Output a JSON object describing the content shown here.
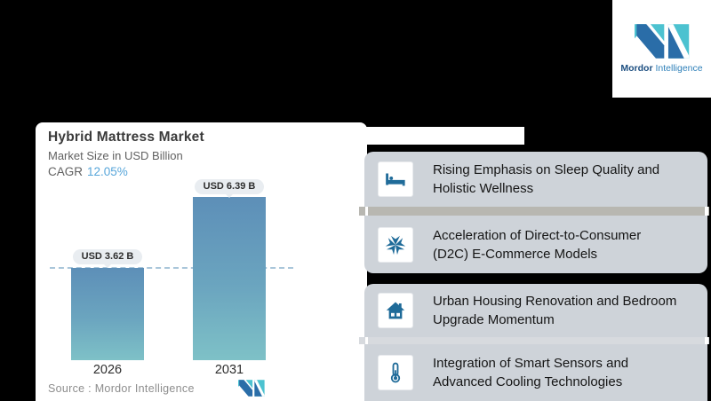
{
  "logo": {
    "brand_bold": "Mordor",
    "brand_regular": "Intelligence"
  },
  "chart": {
    "title": "Hybrid Mattress Market",
    "subtitle": "Market Size in USD Billion",
    "cagr_label": "CAGR",
    "cagr_value": "12.05%",
    "source": "Source :  Mordor Intelligence"
  },
  "chart_data": {
    "type": "bar",
    "title": "Hybrid Mattress Market",
    "subtitle": "Market Size in USD Billion",
    "cagr": "12.05%",
    "categories": [
      "2026",
      "2031"
    ],
    "values": [
      3.62,
      6.39
    ],
    "unit": "USD Billion",
    "bar_labels": [
      "USD 3.62 B",
      "USD 6.39 B"
    ],
    "reference_line_value": 3.62,
    "bar_gradient_top": "#5d8fb8",
    "bar_gradient_bottom": "#7ec1c7",
    "source": "Source :  Mordor Intelligence"
  },
  "drivers": [
    {
      "icon": "bed-icon",
      "line1": "Rising Emphasis on Sleep Quality and",
      "line2": "Holistic Wellness"
    },
    {
      "icon": "converging-arrows-icon",
      "line1": "Acceleration of Direct-to-Consumer",
      "line2": "(D2C) E-Commerce Models"
    },
    {
      "icon": "house-icon",
      "line1": "Urban Housing Renovation and Bedroom",
      "line2": "Upgrade Momentum"
    },
    {
      "icon": "thermometer-icon",
      "line1": "Integration of Smart Sensors and",
      "line2": "Advanced Cooling Technologies"
    }
  ],
  "colors": {
    "background": "#000000",
    "panel_gray": "#ced3d9",
    "icon_blue": "#1f6b99",
    "cagr_blue": "#58a6da",
    "dashed_line": "#a9c6da",
    "logo_dark_blue": "#2a6da8",
    "logo_teal": "#4cc2d0"
  }
}
